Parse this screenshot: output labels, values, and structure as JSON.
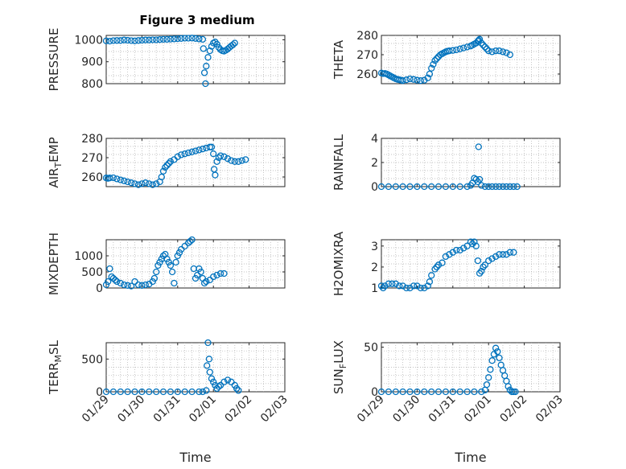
{
  "figure": {
    "title": "Figure 3 medium",
    "xlabel": "Time",
    "x_tick_labels": [
      "01/29",
      "01/30",
      "01/31",
      "02/01",
      "02/02",
      "02/03"
    ]
  },
  "chart_data": [
    {
      "type": "scatter",
      "ylabel": "PRESSURE",
      "ylim": [
        800,
        1020
      ],
      "yticks": [
        800,
        900,
        1000
      ],
      "xlim": [
        0,
        5
      ],
      "grid": "minor-dotted",
      "points": [
        [
          0,
          995
        ],
        [
          0.1,
          994
        ],
        [
          0.2,
          996
        ],
        [
          0.3,
          997
        ],
        [
          0.4,
          997
        ],
        [
          0.5,
          999
        ],
        [
          0.6,
          998
        ],
        [
          0.7,
          996
        ],
        [
          0.8,
          995
        ],
        [
          0.9,
          997
        ],
        [
          1.0,
          998
        ],
        [
          1.1,
          999
        ],
        [
          1.2,
          999
        ],
        [
          1.3,
          1000
        ],
        [
          1.4,
          1000
        ],
        [
          1.5,
          1001
        ],
        [
          1.6,
          1002
        ],
        [
          1.7,
          1002
        ],
        [
          1.8,
          1003
        ],
        [
          1.9,
          1004
        ],
        [
          2.0,
          1005
        ],
        [
          2.1,
          1006
        ],
        [
          2.2,
          1007
        ],
        [
          2.3,
          1007
        ],
        [
          2.4,
          1008
        ],
        [
          2.5,
          1006
        ],
        [
          2.6,
          1004
        ],
        [
          2.7,
          1002
        ],
        [
          2.72,
          960
        ],
        [
          2.75,
          850
        ],
        [
          2.78,
          800
        ],
        [
          2.8,
          880
        ],
        [
          2.85,
          920
        ],
        [
          2.9,
          950
        ],
        [
          2.95,
          970
        ],
        [
          3.0,
          985
        ],
        [
          3.05,
          990
        ],
        [
          3.1,
          980
        ],
        [
          3.15,
          965
        ],
        [
          3.2,
          955
        ],
        [
          3.25,
          950
        ],
        [
          3.3,
          948
        ],
        [
          3.35,
          952
        ],
        [
          3.4,
          958
        ],
        [
          3.45,
          965
        ],
        [
          3.5,
          972
        ],
        [
          3.55,
          978
        ],
        [
          3.6,
          985
        ]
      ]
    },
    {
      "type": "scatter",
      "ylabel": "THETA",
      "ylim": [
        255,
        280
      ],
      "yticks": [
        260,
        270,
        280
      ],
      "xlim": [
        0,
        5
      ],
      "grid": "minor-dotted",
      "points": [
        [
          0,
          260.5
        ],
        [
          0.05,
          260.2
        ],
        [
          0.1,
          260.3
        ],
        [
          0.15,
          260
        ],
        [
          0.2,
          259.5
        ],
        [
          0.25,
          259
        ],
        [
          0.3,
          258.5
        ],
        [
          0.35,
          258
        ],
        [
          0.4,
          257.5
        ],
        [
          0.45,
          257.2
        ],
        [
          0.5,
          257
        ],
        [
          0.55,
          256.8
        ],
        [
          0.6,
          256.6
        ],
        [
          0.7,
          257
        ],
        [
          0.8,
          257.5
        ],
        [
          0.9,
          257.2
        ],
        [
          1.0,
          256.8
        ],
        [
          1.1,
          256.6
        ],
        [
          1.2,
          256.8
        ],
        [
          1.3,
          258
        ],
        [
          1.35,
          260
        ],
        [
          1.4,
          263
        ],
        [
          1.45,
          265
        ],
        [
          1.5,
          267
        ],
        [
          1.55,
          268
        ],
        [
          1.6,
          269
        ],
        [
          1.65,
          270
        ],
        [
          1.7,
          270.5
        ],
        [
          1.75,
          271
        ],
        [
          1.8,
          271.5
        ],
        [
          1.85,
          271.8
        ],
        [
          1.9,
          272
        ],
        [
          2.0,
          272.2
        ],
        [
          2.1,
          272.5
        ],
        [
          2.2,
          273
        ],
        [
          2.3,
          273.5
        ],
        [
          2.4,
          274
        ],
        [
          2.5,
          274.5
        ],
        [
          2.55,
          275
        ],
        [
          2.6,
          275.5
        ],
        [
          2.65,
          276
        ],
        [
          2.7,
          277
        ],
        [
          2.72,
          277.5
        ],
        [
          2.75,
          278
        ],
        [
          2.8,
          276
        ],
        [
          2.85,
          275
        ],
        [
          2.9,
          274
        ],
        [
          2.95,
          273
        ],
        [
          3.0,
          272
        ],
        [
          3.1,
          271.5
        ],
        [
          3.2,
          272
        ],
        [
          3.3,
          272
        ],
        [
          3.4,
          271.5
        ],
        [
          3.5,
          271
        ],
        [
          3.6,
          270
        ]
      ]
    },
    {
      "type": "scatter",
      "ylabel": "AIR_TEMP",
      "ylim": [
        255,
        280
      ],
      "yticks": [
        260,
        270,
        280
      ],
      "xlim": [
        0,
        5
      ],
      "grid": "minor-dotted",
      "points": [
        [
          0,
          259.5
        ],
        [
          0.05,
          259.3
        ],
        [
          0.1,
          259.5
        ],
        [
          0.2,
          259.6
        ],
        [
          0.3,
          259
        ],
        [
          0.4,
          258.5
        ],
        [
          0.5,
          258
        ],
        [
          0.6,
          257.5
        ],
        [
          0.7,
          257
        ],
        [
          0.8,
          256.5
        ],
        [
          0.9,
          256
        ],
        [
          1.0,
          256.5
        ],
        [
          1.1,
          257
        ],
        [
          1.2,
          256.5
        ],
        [
          1.3,
          256
        ],
        [
          1.4,
          256.5
        ],
        [
          1.5,
          257.5
        ],
        [
          1.55,
          260
        ],
        [
          1.6,
          263
        ],
        [
          1.65,
          265
        ],
        [
          1.7,
          266
        ],
        [
          1.75,
          267
        ],
        [
          1.8,
          268
        ],
        [
          1.9,
          269
        ],
        [
          2.0,
          270.5
        ],
        [
          2.1,
          271.5
        ],
        [
          2.2,
          272
        ],
        [
          2.3,
          272.5
        ],
        [
          2.4,
          273
        ],
        [
          2.5,
          273.5
        ],
        [
          2.6,
          274
        ],
        [
          2.7,
          274.5
        ],
        [
          2.8,
          275
        ],
        [
          2.9,
          275.5
        ],
        [
          2.95,
          275.5
        ],
        [
          3.0,
          272
        ],
        [
          3.02,
          264
        ],
        [
          3.05,
          261
        ],
        [
          3.1,
          268
        ],
        [
          3.15,
          270
        ],
        [
          3.2,
          271
        ],
        [
          3.3,
          270.5
        ],
        [
          3.4,
          269.5
        ],
        [
          3.5,
          268.5
        ],
        [
          3.6,
          268
        ],
        [
          3.7,
          268
        ],
        [
          3.8,
          268.5
        ],
        [
          3.9,
          269
        ]
      ]
    },
    {
      "type": "scatter",
      "ylabel": "RAINFALL",
      "ylim": [
        0,
        4
      ],
      "yticks": [
        0,
        2,
        4
      ],
      "xlim": [
        0,
        5
      ],
      "grid": "minor-dotted",
      "points": [
        [
          0,
          0
        ],
        [
          0.2,
          0
        ],
        [
          0.4,
          0
        ],
        [
          0.6,
          0
        ],
        [
          0.8,
          0
        ],
        [
          1.0,
          0
        ],
        [
          1.2,
          0
        ],
        [
          1.4,
          0
        ],
        [
          1.6,
          0
        ],
        [
          1.8,
          0
        ],
        [
          2.0,
          0
        ],
        [
          2.2,
          0
        ],
        [
          2.4,
          0
        ],
        [
          2.5,
          0.1
        ],
        [
          2.55,
          0.3
        ],
        [
          2.6,
          0.7
        ],
        [
          2.65,
          0.6
        ],
        [
          2.7,
          0.4
        ],
        [
          2.72,
          3.3
        ],
        [
          2.75,
          0.6
        ],
        [
          2.8,
          0.1
        ],
        [
          2.9,
          0
        ],
        [
          3.0,
          0
        ],
        [
          3.1,
          0
        ],
        [
          3.2,
          0
        ],
        [
          3.3,
          0
        ],
        [
          3.4,
          0
        ],
        [
          3.5,
          0
        ],
        [
          3.6,
          0
        ],
        [
          3.7,
          0
        ],
        [
          3.8,
          0
        ]
      ]
    },
    {
      "type": "scatter",
      "ylabel": "MIXDEPTH",
      "ylim": [
        0,
        1500
      ],
      "yticks": [
        0,
        500,
        1000
      ],
      "xlim": [
        0,
        5
      ],
      "grid": "minor-dotted",
      "points": [
        [
          0,
          100
        ],
        [
          0.05,
          200
        ],
        [
          0.1,
          600
        ],
        [
          0.15,
          350
        ],
        [
          0.2,
          300
        ],
        [
          0.25,
          250
        ],
        [
          0.3,
          200
        ],
        [
          0.4,
          150
        ],
        [
          0.5,
          100
        ],
        [
          0.6,
          80
        ],
        [
          0.7,
          60
        ],
        [
          0.8,
          200
        ],
        [
          0.9,
          100
        ],
        [
          1.0,
          80
        ],
        [
          1.1,
          100
        ],
        [
          1.2,
          120
        ],
        [
          1.3,
          200
        ],
        [
          1.35,
          300
        ],
        [
          1.4,
          500
        ],
        [
          1.45,
          700
        ],
        [
          1.5,
          800
        ],
        [
          1.55,
          900
        ],
        [
          1.6,
          1000
        ],
        [
          1.65,
          1050
        ],
        [
          1.7,
          900
        ],
        [
          1.75,
          800
        ],
        [
          1.8,
          700
        ],
        [
          1.85,
          500
        ],
        [
          1.9,
          150
        ],
        [
          1.95,
          800
        ],
        [
          2.0,
          1000
        ],
        [
          2.05,
          1100
        ],
        [
          2.1,
          1200
        ],
        [
          2.2,
          1300
        ],
        [
          2.3,
          1400
        ],
        [
          2.35,
          1450
        ],
        [
          2.4,
          1500
        ],
        [
          2.45,
          600
        ],
        [
          2.5,
          300
        ],
        [
          2.55,
          400
        ],
        [
          2.6,
          600
        ],
        [
          2.65,
          500
        ],
        [
          2.7,
          300
        ],
        [
          2.75,
          150
        ],
        [
          2.8,
          200
        ],
        [
          2.9,
          250
        ],
        [
          3.0,
          350
        ],
        [
          3.1,
          400
        ],
        [
          3.2,
          450
        ],
        [
          3.3,
          450
        ]
      ]
    },
    {
      "type": "scatter",
      "ylabel": "H2OMIXRA",
      "ylim": [
        1,
        3.3
      ],
      "yticks": [
        1,
        2,
        3
      ],
      "xlim": [
        0,
        5
      ],
      "grid": "minor-dotted",
      "points": [
        [
          0,
          1.1
        ],
        [
          0.05,
          1.0
        ],
        [
          0.1,
          1.1
        ],
        [
          0.2,
          1.2
        ],
        [
          0.3,
          1.2
        ],
        [
          0.4,
          1.2
        ],
        [
          0.5,
          1.1
        ],
        [
          0.6,
          1.1
        ],
        [
          0.7,
          1.0
        ],
        [
          0.8,
          1.0
        ],
        [
          0.9,
          1.1
        ],
        [
          1.0,
          1.1
        ],
        [
          1.1,
          1.0
        ],
        [
          1.2,
          1.0
        ],
        [
          1.3,
          1.1
        ],
        [
          1.35,
          1.3
        ],
        [
          1.4,
          1.6
        ],
        [
          1.5,
          1.9
        ],
        [
          1.55,
          2.0
        ],
        [
          1.6,
          2.1
        ],
        [
          1.7,
          2.2
        ],
        [
          1.8,
          2.5
        ],
        [
          1.9,
          2.6
        ],
        [
          2.0,
          2.7
        ],
        [
          2.1,
          2.8
        ],
        [
          2.2,
          2.8
        ],
        [
          2.3,
          2.9
        ],
        [
          2.4,
          3.0
        ],
        [
          2.5,
          3.2
        ],
        [
          2.55,
          3.1
        ],
        [
          2.6,
          3.2
        ],
        [
          2.65,
          3.0
        ],
        [
          2.7,
          2.3
        ],
        [
          2.75,
          1.7
        ],
        [
          2.8,
          1.8
        ],
        [
          2.85,
          2.0
        ],
        [
          2.9,
          2.1
        ],
        [
          3.0,
          2.3
        ],
        [
          3.1,
          2.4
        ],
        [
          3.2,
          2.5
        ],
        [
          3.3,
          2.6
        ],
        [
          3.4,
          2.6
        ],
        [
          3.5,
          2.6
        ],
        [
          3.6,
          2.7
        ],
        [
          3.7,
          2.7
        ]
      ]
    },
    {
      "type": "scatter",
      "ylabel": "TERR_MSL",
      "ylim": [
        0,
        750
      ],
      "yticks": [
        0,
        500
      ],
      "xlim": [
        0,
        5
      ],
      "grid": "minor-dotted",
      "points": [
        [
          0,
          0
        ],
        [
          0.2,
          0
        ],
        [
          0.4,
          0
        ],
        [
          0.6,
          0
        ],
        [
          0.8,
          0
        ],
        [
          1.0,
          0
        ],
        [
          1.2,
          0
        ],
        [
          1.4,
          0
        ],
        [
          1.6,
          0
        ],
        [
          1.8,
          0
        ],
        [
          2.0,
          0
        ],
        [
          2.2,
          0
        ],
        [
          2.4,
          0
        ],
        [
          2.6,
          0
        ],
        [
          2.7,
          0
        ],
        [
          2.8,
          20
        ],
        [
          2.82,
          400
        ],
        [
          2.85,
          750
        ],
        [
          2.88,
          500
        ],
        [
          2.9,
          300
        ],
        [
          2.95,
          200
        ],
        [
          3.0,
          150
        ],
        [
          3.05,
          100
        ],
        [
          3.1,
          50
        ],
        [
          3.15,
          80
        ],
        [
          3.2,
          100
        ],
        [
          3.3,
          150
        ],
        [
          3.4,
          180
        ],
        [
          3.5,
          150
        ],
        [
          3.6,
          100
        ],
        [
          3.65,
          50
        ],
        [
          3.7,
          20
        ]
      ]
    },
    {
      "type": "scatter",
      "ylabel": "SUN_FLUX",
      "ylim": [
        0,
        55
      ],
      "yticks": [
        0,
        50
      ],
      "xlim": [
        0,
        5
      ],
      "grid": "minor-dotted",
      "points": [
        [
          0,
          0
        ],
        [
          0.2,
          0
        ],
        [
          0.4,
          0
        ],
        [
          0.6,
          0
        ],
        [
          0.8,
          0
        ],
        [
          1.0,
          0
        ],
        [
          1.2,
          0
        ],
        [
          1.4,
          0
        ],
        [
          1.6,
          0
        ],
        [
          1.8,
          0
        ],
        [
          2.0,
          0
        ],
        [
          2.2,
          0
        ],
        [
          2.4,
          0
        ],
        [
          2.6,
          0
        ],
        [
          2.8,
          0
        ],
        [
          2.9,
          2
        ],
        [
          2.95,
          8
        ],
        [
          3.0,
          16
        ],
        [
          3.05,
          25
        ],
        [
          3.1,
          35
        ],
        [
          3.15,
          42
        ],
        [
          3.2,
          49
        ],
        [
          3.25,
          45
        ],
        [
          3.3,
          38
        ],
        [
          3.35,
          30
        ],
        [
          3.4,
          24
        ],
        [
          3.45,
          18
        ],
        [
          3.5,
          12
        ],
        [
          3.55,
          6
        ],
        [
          3.6,
          2
        ],
        [
          3.65,
          0
        ],
        [
          3.7,
          0
        ],
        [
          3.75,
          0
        ]
      ]
    }
  ]
}
